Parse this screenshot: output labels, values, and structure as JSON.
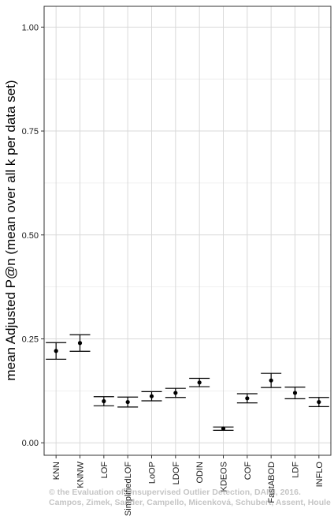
{
  "chart_data": {
    "type": "scatter",
    "subtype": "point-with-errorbars",
    "ylabel": "mean Adjusted P@n (mean over all k per data set)",
    "xlabel": "",
    "ylim": [
      -0.03,
      1.05
    ],
    "yticks": [
      0.0,
      0.25,
      0.5,
      0.75,
      1.0
    ],
    "ytick_labels": [
      "0.00",
      "0.25",
      "0.50",
      "0.75",
      "1.00"
    ],
    "grid": true,
    "categories": [
      "KNN",
      "KNNW",
      "LOF",
      "SimplifiedLOF",
      "LoOP",
      "LDOF",
      "ODIN",
      "KDEOS",
      "COF",
      "FastABOD",
      "LDF",
      "INFLO"
    ],
    "values": [
      0.221,
      0.24,
      0.1,
      0.098,
      0.112,
      0.12,
      0.145,
      0.034,
      0.107,
      0.15,
      0.12,
      0.098
    ],
    "err_low": [
      0.201,
      0.22,
      0.089,
      0.086,
      0.101,
      0.109,
      0.135,
      0.03,
      0.096,
      0.133,
      0.106,
      0.087
    ],
    "err_high": [
      0.241,
      0.26,
      0.111,
      0.11,
      0.123,
      0.131,
      0.155,
      0.038,
      0.118,
      0.167,
      0.134,
      0.109
    ],
    "colors": {
      "point": "#000000",
      "grid": "#d9d9d9",
      "axis": "#333333"
    }
  },
  "watermark": {
    "line1": "© the Evaluation of Unsupervised Outlier Detection, DAMI, 2016.",
    "line2": "Campos, Zimek, Sander, Campello, Micenková, Schubert, Assent, Houle"
  }
}
